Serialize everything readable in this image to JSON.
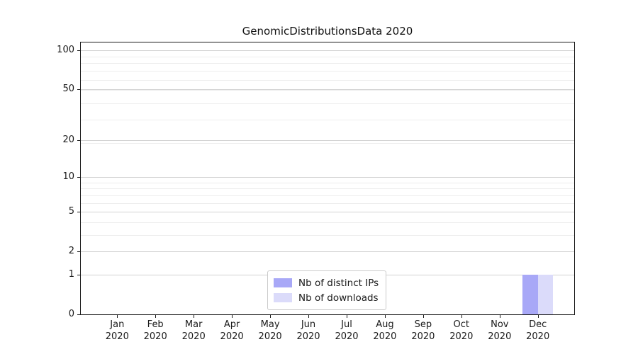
{
  "chart_data": {
    "type": "bar",
    "title": "GenomicDistributionsData 2020",
    "x_tick_months": [
      "Jan",
      "Feb",
      "Mar",
      "Apr",
      "May",
      "Jun",
      "Jul",
      "Aug",
      "Sep",
      "Oct",
      "Nov",
      "Dec"
    ],
    "x_tick_year": "2020",
    "series": [
      {
        "name": "Nb of distinct IPs",
        "color": "#a8a8f7",
        "values": [
          0,
          0,
          0,
          0,
          0,
          0,
          0,
          0,
          0,
          0,
          0,
          1
        ]
      },
      {
        "name": "Nb of downloads",
        "color": "#dbdbfa",
        "values": [
          0,
          0,
          0,
          0,
          0,
          0,
          0,
          0,
          0,
          0,
          0,
          1
        ]
      }
    ],
    "y_ticks": [
      0,
      1,
      2,
      5,
      10,
      20,
      50,
      100
    ],
    "y_scale": "log1p",
    "ylim": [
      0,
      114
    ],
    "grid": true,
    "legend_position": "lower-center-inside",
    "legend_labels": [
      "Nb of distinct IPs",
      "Nb of downloads"
    ]
  }
}
